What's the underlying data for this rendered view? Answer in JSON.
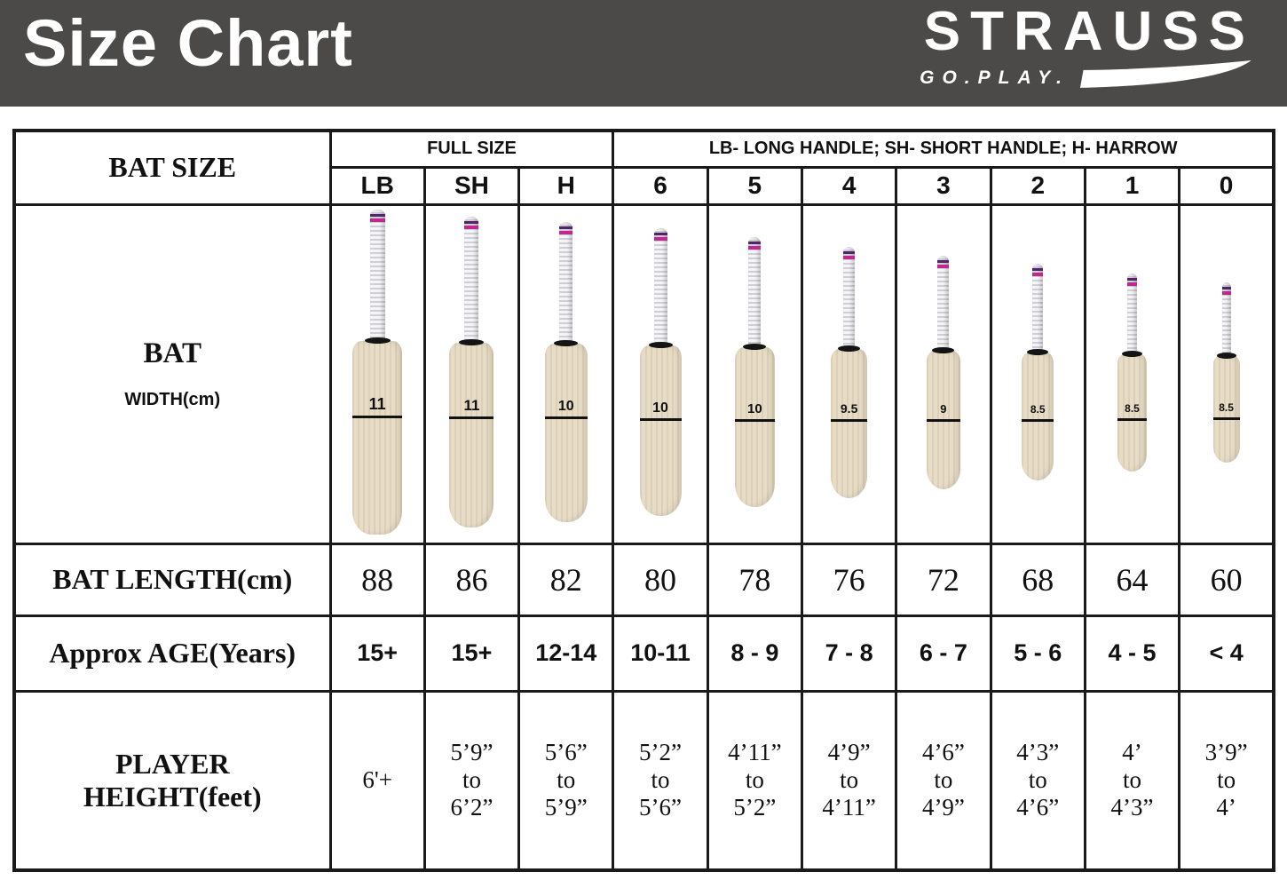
{
  "banner": {
    "title": "Size Chart",
    "brand": "STRAUSS",
    "tagline": "GO.PLAY."
  },
  "table": {
    "corner_label": "BAT SIZE",
    "group_headers": {
      "full_size": "FULL SIZE",
      "legend": "LB- LONG HANDLE; SH- SHORT HANDLE; H- HARROW"
    },
    "row_labels": {
      "bat_line1": "BAT",
      "bat_line2": "WIDTH(cm)",
      "length": "BAT LENGTH(cm)",
      "age": "Approx AGE(Years)",
      "height_line1": "PLAYER",
      "height_line2": "HEIGHT(feet)"
    },
    "columns": [
      {
        "size": "LB",
        "width_cm": "11",
        "length_cm": "88",
        "age_years": "15+",
        "height_feet": [
          "6'+"
        ]
      },
      {
        "size": "SH",
        "width_cm": "11",
        "length_cm": "86",
        "age_years": "15+",
        "height_feet": [
          "5’9”",
          "to",
          "6’2”"
        ]
      },
      {
        "size": "H",
        "width_cm": "10",
        "length_cm": "82",
        "age_years": "12-14",
        "height_feet": [
          "5’6”",
          "to",
          "5’9”"
        ]
      },
      {
        "size": "6",
        "width_cm": "10",
        "length_cm": "80",
        "age_years": "10-11",
        "height_feet": [
          "5’2”",
          "to",
          "5’6”"
        ]
      },
      {
        "size": "5",
        "width_cm": "10",
        "length_cm": "78",
        "age_years": "8 - 9",
        "height_feet": [
          "4’11”",
          "to",
          "5’2”"
        ]
      },
      {
        "size": "4",
        "width_cm": "9.5",
        "length_cm": "76",
        "age_years": "7 - 8",
        "height_feet": [
          "4’9”",
          "to",
          "4’11”"
        ]
      },
      {
        "size": "3",
        "width_cm": "9",
        "length_cm": "72",
        "age_years": "6 - 7",
        "height_feet": [
          "4’6”",
          "to",
          "4’9”"
        ]
      },
      {
        "size": "2",
        "width_cm": "8.5",
        "length_cm": "68",
        "age_years": "5 - 6",
        "height_feet": [
          "4’3”",
          "to",
          "4’6”"
        ]
      },
      {
        "size": "1",
        "width_cm": "8.5",
        "length_cm": "64",
        "age_years": "4 - 5",
        "height_feet": [
          "4’",
          "to",
          "4’3”"
        ]
      },
      {
        "size": "0",
        "width_cm": "8.5",
        "length_cm": "60",
        "age_years": "< 4",
        "height_feet": [
          "3’9”",
          "to",
          "4’"
        ]
      }
    ],
    "colors": {
      "banner_bg": "#4c4949",
      "length_value": "#2140b4",
      "age_value": "#a9252a",
      "blade": "#e7dcc6",
      "grip_stripe": "#c02890"
    }
  },
  "chart_data": {
    "type": "table",
    "title": "Size Chart",
    "columns": [
      "BAT SIZE",
      "LB",
      "SH",
      "H",
      "6",
      "5",
      "4",
      "3",
      "2",
      "1",
      "0"
    ],
    "rows": [
      [
        "BAT WIDTH(cm)",
        "11",
        "11",
        "10",
        "10",
        "10",
        "9.5",
        "9",
        "8.5",
        "8.5",
        "8.5"
      ],
      [
        "BAT LENGTH(cm)",
        "88",
        "86",
        "82",
        "80",
        "78",
        "76",
        "72",
        "68",
        "64",
        "60"
      ],
      [
        "Approx AGE(Years)",
        "15+",
        "15+",
        "12-14",
        "10-11",
        "8 - 9",
        "7 - 8",
        "6 - 7",
        "5 - 6",
        "4 - 5",
        "< 4"
      ],
      [
        "PLAYER HEIGHT(feet)",
        "6'+",
        "5’9” to 6’2”",
        "5’6” to 5’9”",
        "5’2” to 5’6”",
        "4’11” to 5’2”",
        "4’9” to 4’11”",
        "4’6” to 4’9”",
        "4’3” to 4’6”",
        "4’ to 4’3”",
        "3’9” to 4’"
      ]
    ],
    "notes": [
      "FULL SIZE spans columns LB, SH, H",
      "LB- LONG HANDLE; SH- SHORT HANDLE; H- HARROW"
    ]
  }
}
